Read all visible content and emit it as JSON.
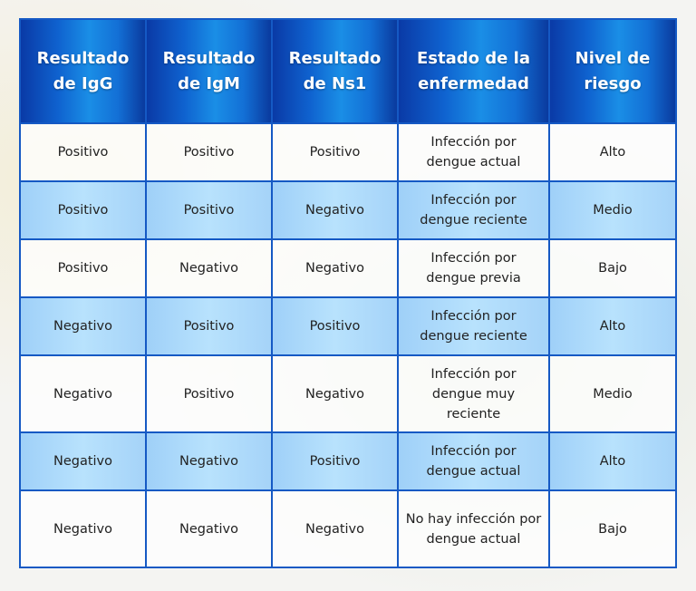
{
  "headers": [
    "Resultado de IgG",
    "Resultado de IgM",
    "Resultado de Ns1",
    "Estado de la enfermedad",
    "Nivel de riesgo"
  ],
  "rows": [
    [
      "Positivo",
      "Positivo",
      "Positivo",
      "Infección por dengue actual",
      "Alto"
    ],
    [
      "Positivo",
      "Positivo",
      "Negativo",
      "Infección por dengue reciente",
      "Medio"
    ],
    [
      "Positivo",
      "Negativo",
      "Negativo",
      "Infección por dengue previa",
      "Bajo"
    ],
    [
      "Negativo",
      "Positivo",
      "Positivo",
      "Infección por dengue reciente",
      "Alto"
    ],
    [
      "Negativo",
      "Positivo",
      "Negativo",
      "Infección por dengue muy reciente",
      "Medio"
    ],
    [
      "Negativo",
      "Negativo",
      "Positivo",
      "Infección por dengue actual",
      "Alto"
    ],
    [
      "Negativo",
      "Negativo",
      "Negativo",
      "No hay infección por dengue actual",
      "Bajo"
    ]
  ],
  "colors": {
    "header": "#0f62cf",
    "border": "#1559c4",
    "row_alt": "#b8e2fd"
  }
}
